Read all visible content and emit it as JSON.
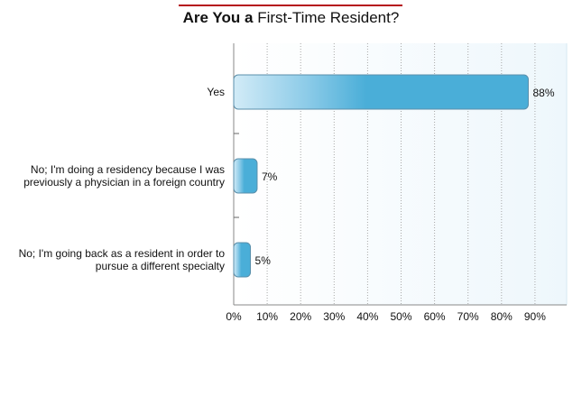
{
  "chart_data": {
    "type": "bar",
    "orientation": "horizontal",
    "title_bold": "Are You a",
    "title_rest": "First-Time Resident?",
    "categories": [
      "Yes",
      "No; I'm doing a residency because I was previously a physician in a foreign country",
      "No; I'm going back as a resident in order to pursue a different specialty"
    ],
    "category_lines": [
      [
        "Yes"
      ],
      [
        "No; I'm doing a residency because I was",
        "previously a physician in a foreign country"
      ],
      [
        "No; I'm going back as a resident in order to",
        "pursue a different specialty"
      ]
    ],
    "values": [
      88,
      7,
      5
    ],
    "data_labels": [
      "88%",
      "7%",
      "5%"
    ],
    "xlim": [
      0,
      100
    ],
    "x_ticks": [
      0,
      10,
      20,
      30,
      40,
      50,
      60,
      70,
      80,
      90
    ],
    "x_tick_labels": [
      "0%",
      "10%",
      "20%",
      "30%",
      "40%",
      "50%",
      "60%",
      "70%",
      "80%",
      "90%"
    ],
    "grid": "vertical dotted",
    "colors": {
      "bar": "#4aaed8",
      "bar_light": "#cfe9f6",
      "title_rule": "#b5121b",
      "plot_bg": "#f3f9fd"
    }
  }
}
